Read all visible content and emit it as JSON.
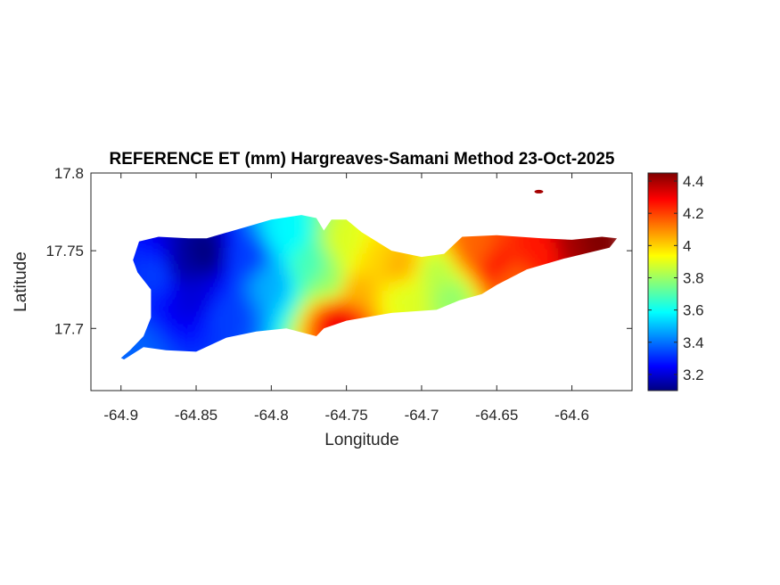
{
  "chart_data": {
    "type": "heatmap",
    "title": "REFERENCE ET (mm) Hargreaves-Samani Method  23-Oct-2025",
    "xlabel": "Longitude",
    "ylabel": "Latitude",
    "xlim": [
      -64.92,
      -64.56
    ],
    "ylim": [
      17.66,
      17.8
    ],
    "xticks": [
      -64.9,
      -64.85,
      -64.8,
      -64.75,
      -64.7,
      -64.65,
      -64.6
    ],
    "xtick_labels": [
      "-64.9",
      "-64.85",
      "-64.8",
      "-64.75",
      "-64.7",
      "-64.65",
      "-64.6"
    ],
    "yticks": [
      17.7,
      17.75,
      17.8
    ],
    "ytick_labels": [
      "17.7",
      "17.75",
      "17.8"
    ],
    "colorbar": {
      "colormap": "jet",
      "range": [
        3.1,
        4.45
      ],
      "ticks": [
        3.2,
        3.4,
        3.6,
        3.8,
        4.0,
        4.2,
        4.4
      ],
      "tick_labels": [
        "3.2",
        "3.4",
        "3.6",
        "3.8",
        "4",
        "4.2",
        "4.4"
      ]
    },
    "island_outline": [
      [
        -64.9,
        17.681
      ],
      [
        -64.894,
        17.686
      ],
      [
        -64.885,
        17.695
      ],
      [
        -64.88,
        17.707
      ],
      [
        -64.88,
        17.725
      ],
      [
        -64.889,
        17.736
      ],
      [
        -64.892,
        17.744
      ],
      [
        -64.888,
        17.756
      ],
      [
        -64.875,
        17.759
      ],
      [
        -64.855,
        17.758
      ],
      [
        -64.843,
        17.758
      ],
      [
        -64.825,
        17.763
      ],
      [
        -64.8,
        17.77
      ],
      [
        -64.78,
        17.773
      ],
      [
        -64.77,
        17.771
      ],
      [
        -64.765,
        17.763
      ],
      [
        -64.76,
        17.77
      ],
      [
        -64.75,
        17.77
      ],
      [
        -64.74,
        17.762
      ],
      [
        -64.72,
        17.75
      ],
      [
        -64.7,
        17.746
      ],
      [
        -64.685,
        17.748
      ],
      [
        -64.673,
        17.759
      ],
      [
        -64.65,
        17.76
      ],
      [
        -64.62,
        17.758
      ],
      [
        -64.6,
        17.757
      ],
      [
        -64.58,
        17.759
      ],
      [
        -64.57,
        17.758
      ],
      [
        -64.575,
        17.752
      ],
      [
        -64.605,
        17.745
      ],
      [
        -64.63,
        17.738
      ],
      [
        -64.65,
        17.728
      ],
      [
        -64.66,
        17.722
      ],
      [
        -64.675,
        17.718
      ],
      [
        -64.69,
        17.712
      ],
      [
        -64.72,
        17.71
      ],
      [
        -64.75,
        17.705
      ],
      [
        -64.765,
        17.7
      ],
      [
        -64.77,
        17.695
      ],
      [
        -64.79,
        17.7
      ],
      [
        -64.81,
        17.698
      ],
      [
        -64.83,
        17.694
      ],
      [
        -64.85,
        17.685
      ],
      [
        -64.87,
        17.686
      ],
      [
        -64.885,
        17.688
      ],
      [
        -64.898,
        17.68
      ]
    ],
    "et_samples": [
      {
        "lon": -64.895,
        "lat": 17.683,
        "et": 3.4
      },
      {
        "lon": -64.875,
        "lat": 17.735,
        "et": 3.35
      },
      {
        "lon": -64.86,
        "lat": 17.74,
        "et": 3.15
      },
      {
        "lon": -64.845,
        "lat": 17.748,
        "et": 3.1
      },
      {
        "lon": -64.85,
        "lat": 17.72,
        "et": 3.22
      },
      {
        "lon": -64.83,
        "lat": 17.71,
        "et": 3.35
      },
      {
        "lon": -64.815,
        "lat": 17.745,
        "et": 3.35
      },
      {
        "lon": -64.8,
        "lat": 17.73,
        "et": 3.5
      },
      {
        "lon": -64.79,
        "lat": 17.76,
        "et": 3.6
      },
      {
        "lon": -64.775,
        "lat": 17.74,
        "et": 3.7
      },
      {
        "lon": -64.76,
        "lat": 17.73,
        "et": 3.8
      },
      {
        "lon": -64.75,
        "lat": 17.755,
        "et": 3.9
      },
      {
        "lon": -64.745,
        "lat": 17.725,
        "et": 4.05
      },
      {
        "lon": -64.755,
        "lat": 17.706,
        "et": 4.3
      },
      {
        "lon": -64.73,
        "lat": 17.745,
        "et": 4.0
      },
      {
        "lon": -64.715,
        "lat": 17.74,
        "et": 4.05
      },
      {
        "lon": -64.71,
        "lat": 17.72,
        "et": 3.9
      },
      {
        "lon": -64.69,
        "lat": 17.735,
        "et": 3.85
      },
      {
        "lon": -64.68,
        "lat": 17.72,
        "et": 3.8
      },
      {
        "lon": -64.665,
        "lat": 17.75,
        "et": 4.15
      },
      {
        "lon": -64.65,
        "lat": 17.74,
        "et": 4.25
      },
      {
        "lon": -64.64,
        "lat": 17.73,
        "et": 4.15
      },
      {
        "lon": -64.62,
        "lat": 17.748,
        "et": 4.25
      },
      {
        "lon": -64.6,
        "lat": 17.753,
        "et": 4.4
      },
      {
        "lon": -64.585,
        "lat": 17.756,
        "et": 4.45
      }
    ],
    "islet": {
      "lon": -64.622,
      "lat": 17.788,
      "et": 4.4
    }
  }
}
